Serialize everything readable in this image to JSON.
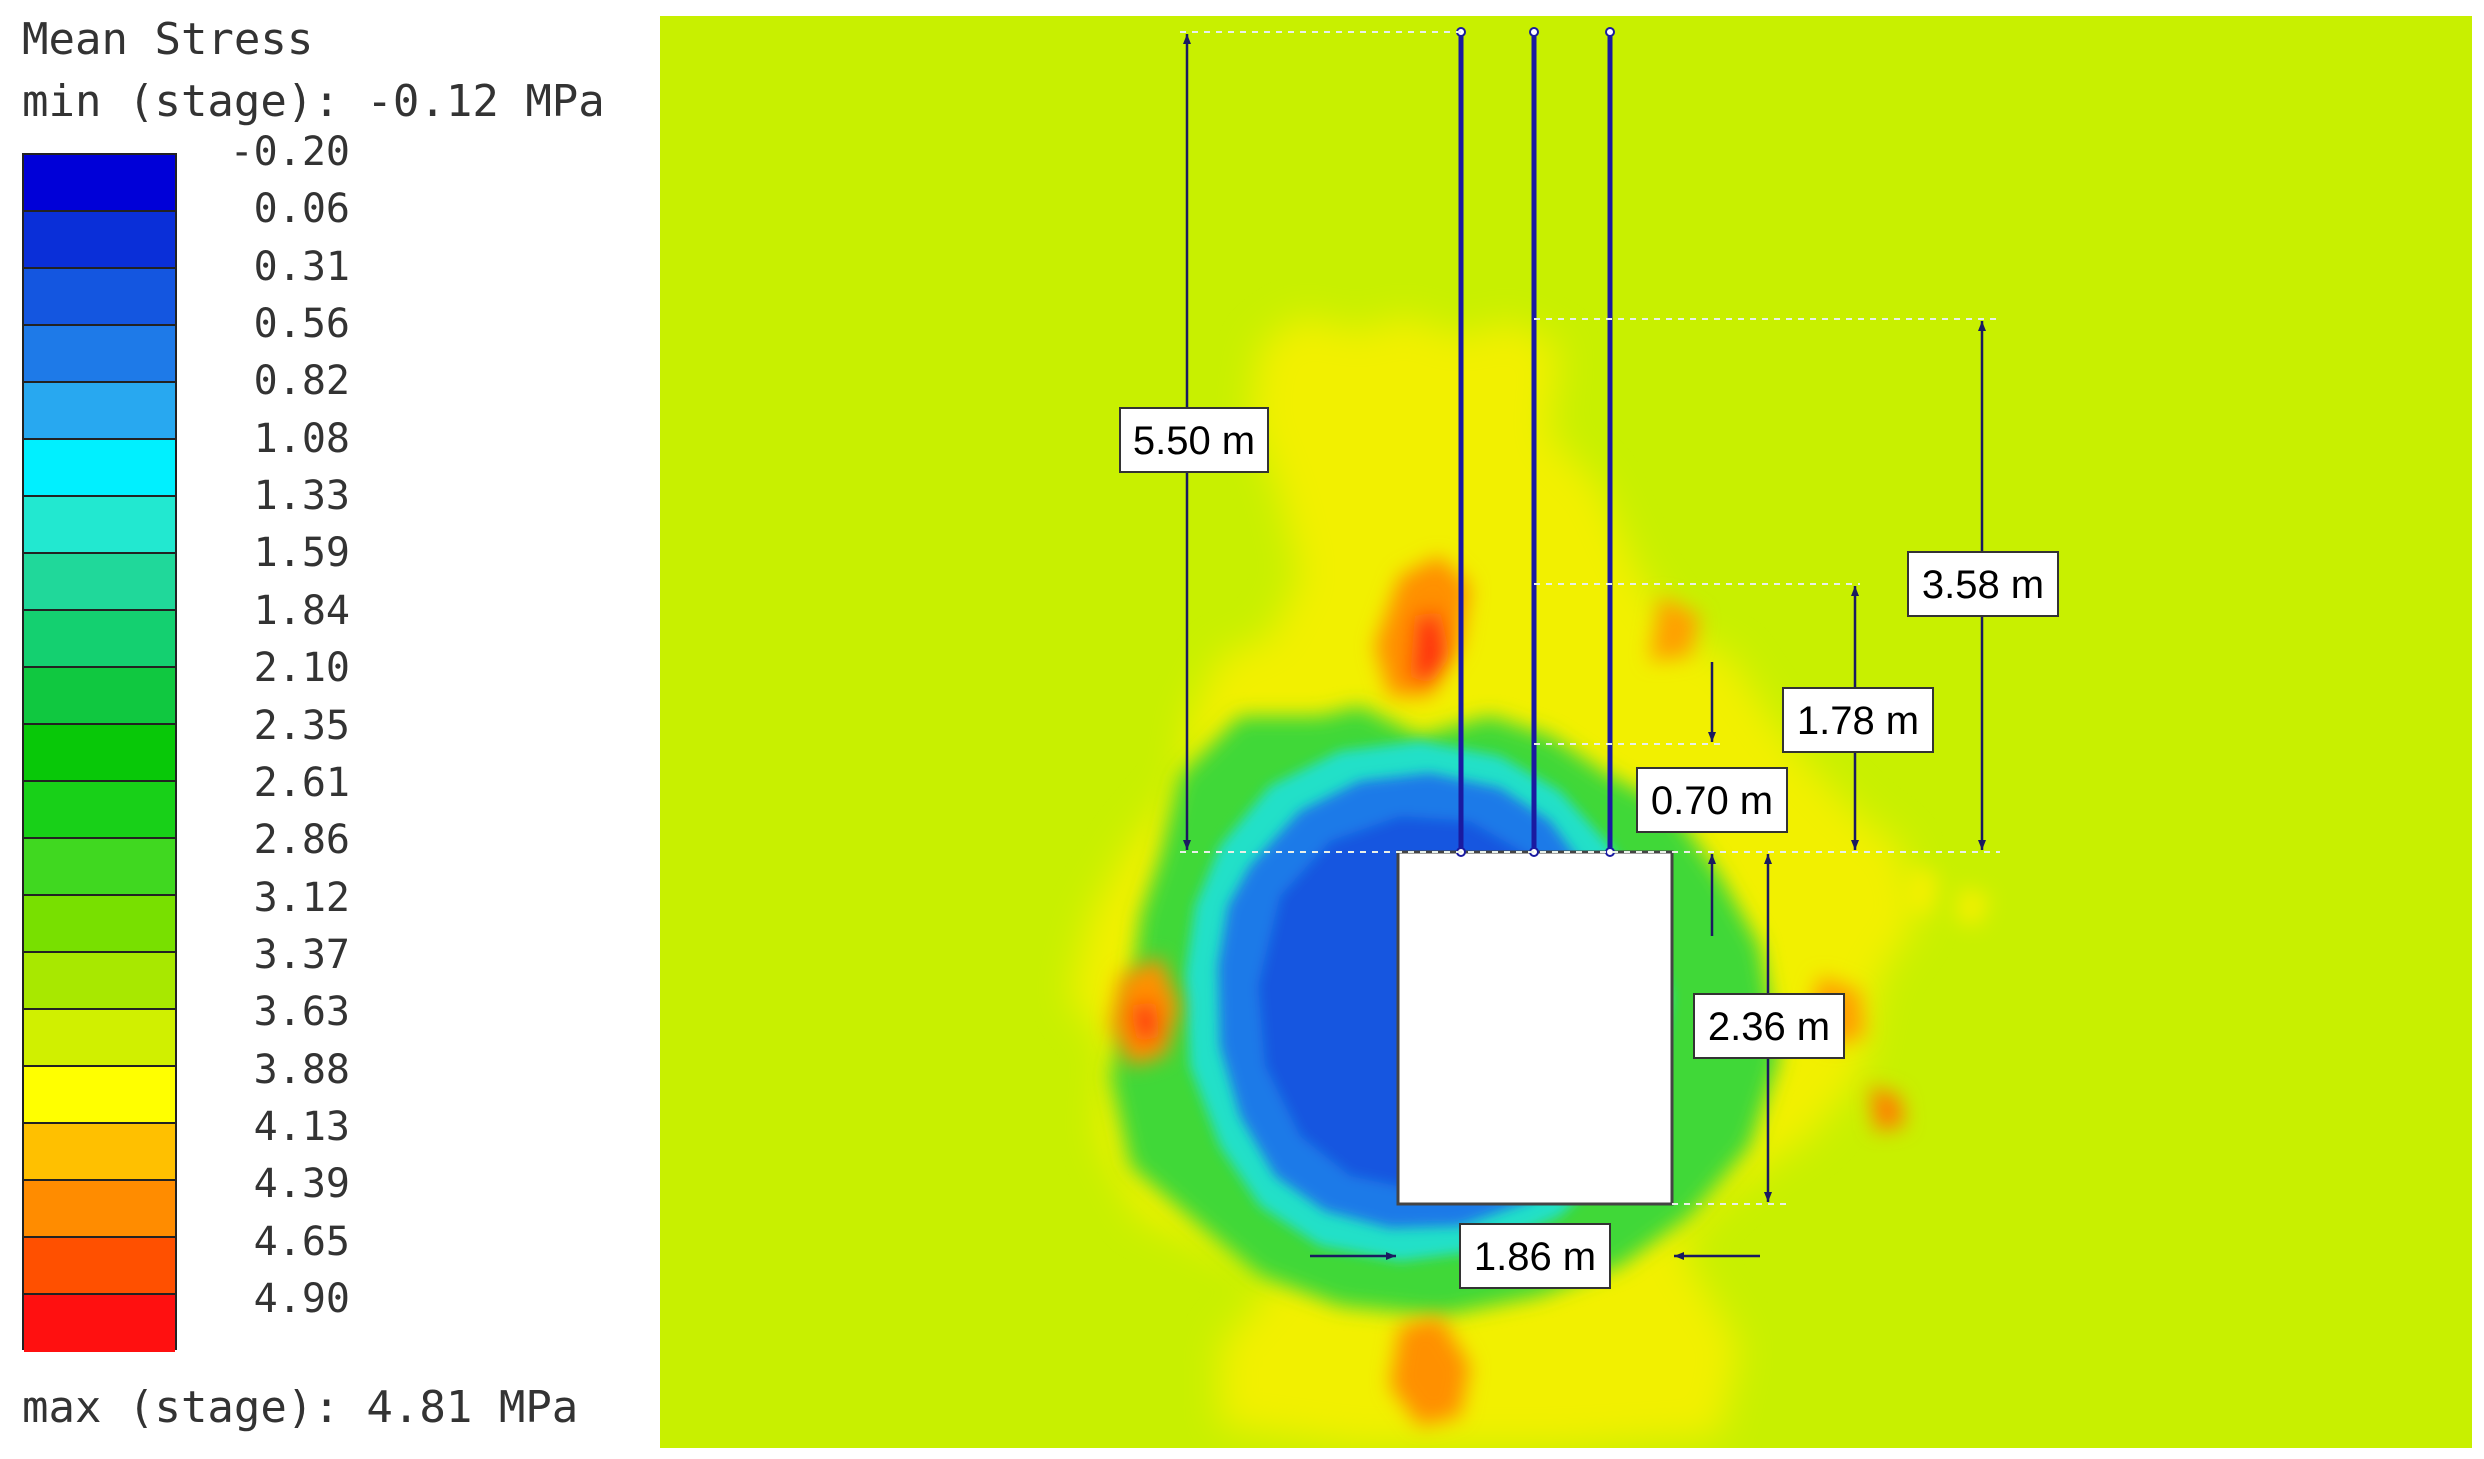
{
  "legend": {
    "title": "Mean Stress",
    "min_text": "min (stage): -0.12 MPa",
    "max_text": "max (stage): 4.81 MPa",
    "ticks": [
      "-0.20",
      "0.06",
      "0.31",
      "0.56",
      "0.82",
      "1.08",
      "1.33",
      "1.59",
      "1.84",
      "2.10",
      "2.35",
      "2.61",
      "2.86",
      "3.12",
      "3.37",
      "3.63",
      "3.88",
      "4.13",
      "4.39",
      "4.65",
      "4.90"
    ],
    "colors": [
      "#0000d8",
      "#0a2fd8",
      "#1456e0",
      "#1e7ae8",
      "#28a8f0",
      "#00f0ff",
      "#22e8d0",
      "#20d89a",
      "#14d070",
      "#10c840",
      "#08c808",
      "#18d018",
      "#40d820",
      "#78e000",
      "#a8e800",
      "#d0f000",
      "#ffff00",
      "#ffc000",
      "#ff8c00",
      "#ff5000",
      "#ff1010"
    ]
  },
  "model": {
    "background_color": "#c8f000",
    "dimensions": {
      "bolt_length": "5.50 m",
      "disturbed_zone_height": "3.58 m",
      "inner_zone_height": "1.78 m",
      "roof_offset": "0.70 m",
      "opening_height": "2.36 m",
      "opening_width": "1.86 m"
    }
  }
}
